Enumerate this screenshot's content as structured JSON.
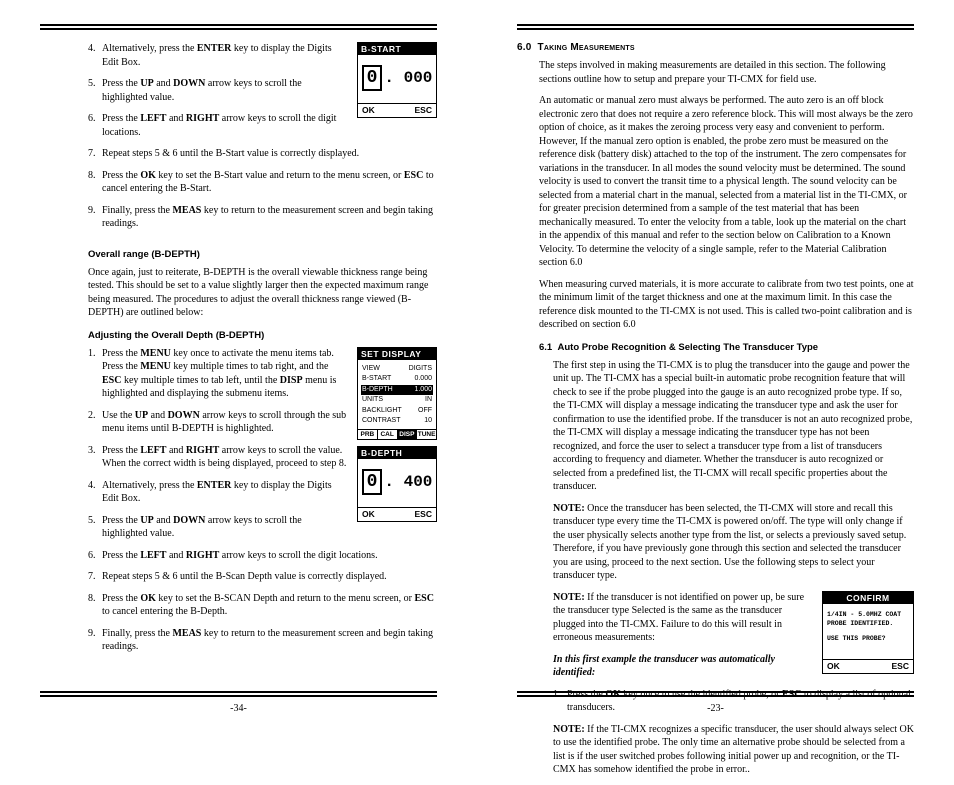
{
  "left": {
    "pageNum": "-34-",
    "steps_a": [
      {
        "n": "4.",
        "text": "Alternatively, press the <b>ENTER</b> key to display the Digits Edit Box."
      },
      {
        "n": "5.",
        "text": "Press the <b>UP</b> and <b>DOWN</b> arrow keys to scroll the highlighted value."
      },
      {
        "n": "6.",
        "text": "Press the <b>LEFT</b> and <b>RIGHT</b> arrow keys to scroll the digit locations."
      },
      {
        "n": "7.",
        "text": "Repeat steps 5 & 6 until the B-Start value is correctly displayed."
      },
      {
        "n": "8.",
        "text": "Press the <b>OK</b> key to set the B-Start value and return to the menu screen, or <b>ESC</b> to cancel entering the B-Start."
      },
      {
        "n": "9.",
        "text": "Finally, press the <b>MEAS</b> key to return to the measurement screen and begin taking readings."
      }
    ],
    "subhead_overall": "Overall range (B-DEPTH)",
    "para_overall": "Once again, just to reiterate, B-DEPTH is the overall viewable thickness range being tested. This should be set to a value slightly larger then the expected maximum range being measured. The procedures to adjust the overall thickness range viewed (B-DEPTH) are outlined below:",
    "subhead_adjust": "Adjusting the Overall Depth (B-DEPTH)",
    "steps_b": [
      {
        "n": "1.",
        "text": "Press the <b>MENU</b> key once to activate the menu items tab. Press the <b>MENU</b> key multiple times to tab right, and the <b>ESC</b> key multiple times to tab left, until the <b>DISP</b> menu is highlighted and displaying the submenu items."
      },
      {
        "n": "2.",
        "text": "Use the <b>UP</b> and <b>DOWN</b> arrow keys to scroll through the sub menu items until B-DEPTH is highlighted."
      },
      {
        "n": "3.",
        "text": "Press the <b>LEFT</b> and <b>RIGHT</b> arrow keys to scroll the value. When the correct width is being displayed, proceed to step 8."
      },
      {
        "n": "4.",
        "text": "Alternatively, press the <b>ENTER</b> key to display the Digits Edit Box."
      },
      {
        "n": "5.",
        "text": "Press the <b>UP</b> and <b>DOWN</b> arrow keys to scroll the highlighted value."
      },
      {
        "n": "6.",
        "text": "Press the <b>LEFT</b> and <b>RIGHT</b> arrow keys to scroll the digit locations."
      },
      {
        "n": "7.",
        "text": "Repeat steps 5 & 6 until the B-Scan Depth value is correctly displayed."
      },
      {
        "n": "8.",
        "text": "Press the <b>OK</b> key to set the B-SCAN Depth and return to the menu screen, or <b>ESC</b> to cancel entering the B-Depth."
      },
      {
        "n": "9.",
        "text": "Finally, press the <b>MEAS</b> key to return to the measurement screen and begin taking readings."
      }
    ],
    "lcd_bstart": {
      "title": "B-START",
      "digit_box": "0",
      "ext": ". 000",
      "ok": "OK",
      "esc": "ESC"
    },
    "lcd_setdisp": {
      "title": "SET DISPLAY",
      "rows": [
        {
          "l": "VIEW",
          "r": "DIGITS"
        },
        {
          "l": "B-START",
          "r": "0.000"
        },
        {
          "l": "B-DEPTH",
          "r": "1.000",
          "sel": true
        },
        {
          "l": "UNITS",
          "r": "IN"
        },
        {
          "l": "BACKLIGHT",
          "r": "OFF"
        },
        {
          "l": "CONTRAST",
          "r": "10"
        }
      ],
      "tabs": [
        "PRB",
        "CAL",
        "DISP",
        "TUNE"
      ],
      "activeTab": 2
    },
    "lcd_bdepth": {
      "title": "B-DEPTH",
      "digit_box": "0",
      "ext": ". 400",
      "ok": "OK",
      "esc": "ESC"
    }
  },
  "right": {
    "pageNum": "-23-",
    "sect_num": "6.0",
    "sect_title": "Taking Measurements",
    "para1": "The steps involved in making measurements are detailed in this section. The following sections outline how to setup and prepare your TI-CMX for field use.",
    "para2": "An automatic or manual zero must always be performed. The auto zero is an off block electronic zero that does not require a zero reference block. This will most always be the zero option of choice, as it makes the zeroing process very easy and convenient to perform. However, If the manual zero option is enabled, the probe zero must be measured on the reference disk (battery disk) attached to the top of the instrument. The zero compensates for variations in the transducer. In all modes the sound velocity must be determined. The sound velocity is used to convert the transit time to a physical length. The sound velocity can be selected from a material chart in the manual, selected from a material list in the TI-CMX, or for greater precision determined from a sample of the test material that has been mechanically measured. To enter the velocity from a table, look up the material on the chart in the appendix of this manual and refer to the section below on Calibration to a Known Velocity. To determine the velocity of a single sample, refer to the Material Calibration section  6.0",
    "para3": "When measuring curved materials, it is more accurate to calibrate from two test points, one at the minimum limit of the target thickness and one at the maximum limit. In this case the reference disk mounted to the TI-CMX is not used. This is called two-point calibration and is described on section 6.0",
    "sub_num": "6.1",
    "sub_title": "Auto Probe Recognition & Selecting The Transducer Type",
    "para4": "The first step in using the TI-CMX is to plug the transducer into the gauge and power the unit up. The TI-CMX has a special built-in automatic probe recognition feature that will check to see if the probe plugged into the gauge is an auto recognized probe type. If so, the TI-CMX will display a message indicating the transducer type and ask the user for confirmation to use the identified probe. If the transducer is not an auto recognized probe, the TI-CMX will display a message indicating the transducer type has not been recognized, and force the user to select a transducer type from a list of transducers according to frequency and diameter. Whether the transducer is auto recognized or selected from a predefined list, the TI-CMX will recall specific properties about the transducer.",
    "note1_label": "NOTE:",
    "note1_text": " Once the transducer has been selected, the TI-CMX will store and recall this transducer type every time the TI-CMX is powered on/off. The type will only change if the user physically selects another type from the list, or selects a previously saved setup. Therefore, if you have previously gone through this section and selected the transducer you are using, proceed to the next section. Use the following steps to select your transducer type.",
    "note2_label": "NOTE:",
    "note2_text": " If the transducer is not identified on power up, be sure the transducer type Selected is the same as the transducer plugged into the TI-CMX. Failure to do this will result in erroneous measurements:",
    "ital_line": "In this first example the transducer was automatically identified:",
    "step_r": [
      {
        "n": "1.",
        "text": "Press the <b>OK</b> key once to use the identified probe, or <b>ESC</b> to display a list of optional transducers."
      }
    ],
    "note3_label": "NOTE:",
    "note3_text": " If the TI-CMX recognizes a specific transducer, the user should always select OK to use the identified probe. The only time an alternative probe should be selected from a list is if the user switched probes following initial power up and recognition, or the TI-CMX has somehow identified the probe in error..",
    "lcd_confirm": {
      "title": "CONFIRM",
      "line1": "1/4IN - 5.0MHZ COAT",
      "line2": "PROBE IDENTIFIED.",
      "line3": "USE THIS PROBE?",
      "ok": "OK",
      "esc": "ESC"
    }
  }
}
